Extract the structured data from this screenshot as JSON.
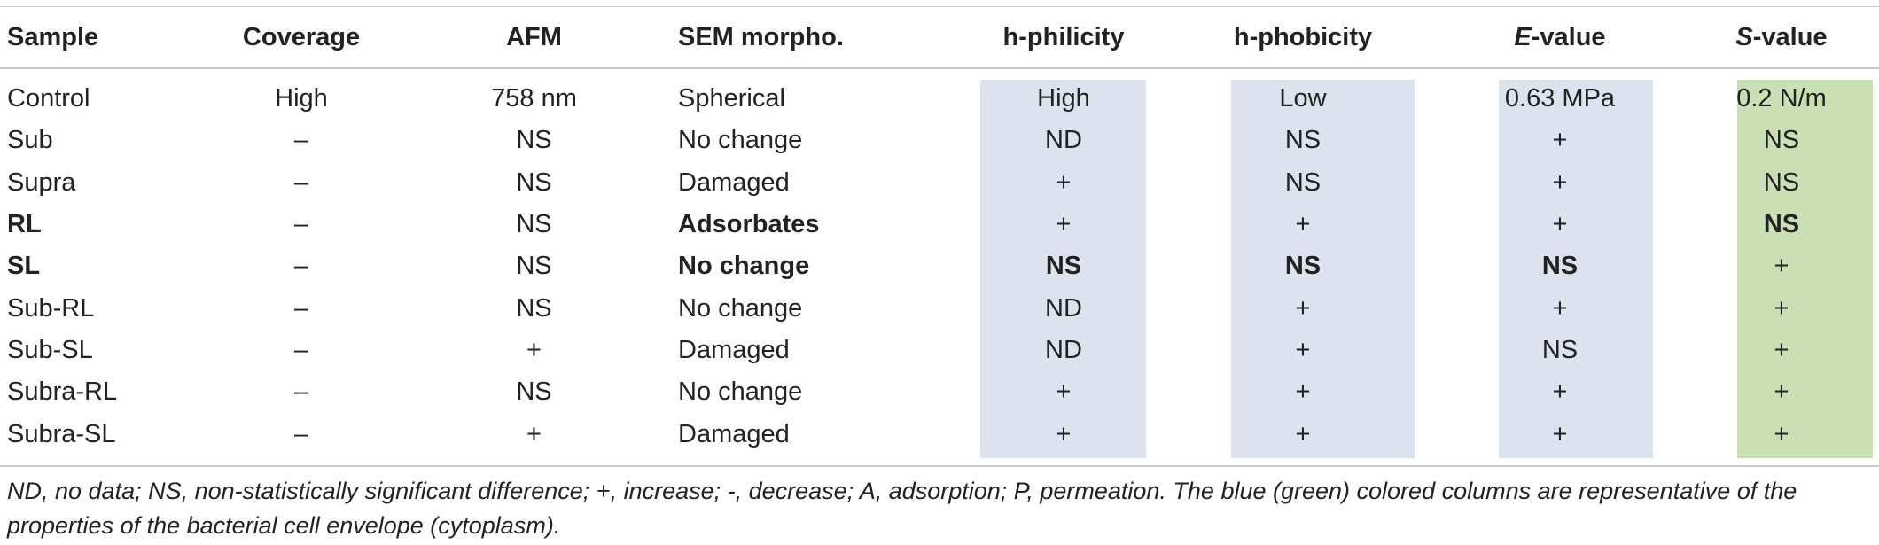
{
  "table": {
    "headers": {
      "sample": "Sample",
      "coverage": "Coverage",
      "afm": "AFM",
      "sem": "SEM morpho.",
      "hphilicity": "h-philicity",
      "hphobicity": "h-phobicity",
      "evalue_letter": "E",
      "evalue_rest": "-value",
      "svalue_letter": "S",
      "svalue_rest": "-value"
    },
    "rows": [
      {
        "sample": "Control",
        "coverage": "High",
        "afm": "758 nm",
        "sem": "Spherical",
        "hphilicity": "High",
        "hphobicity": "Low",
        "evalue": "0.63 MPa",
        "svalue": "0.2 N/m"
      },
      {
        "sample": "Sub",
        "coverage": "–",
        "afm": "NS",
        "sem": "No change",
        "hphilicity": "ND",
        "hphobicity": "NS",
        "evalue": "+",
        "svalue": "NS"
      },
      {
        "sample": "Supra",
        "coverage": "–",
        "afm": "NS",
        "sem": "Damaged",
        "hphilicity": "+",
        "hphobicity": "NS",
        "evalue": "+",
        "svalue": "NS"
      },
      {
        "sample": "RL",
        "coverage": "–",
        "afm": "NS",
        "sem": "Adsorbates",
        "hphilicity": "+",
        "hphobicity": "+",
        "evalue": "+",
        "svalue": "NS"
      },
      {
        "sample": "SL",
        "coverage": "–",
        "afm": "NS",
        "sem": "No change",
        "hphilicity": "NS",
        "hphobicity": "NS",
        "evalue": "NS",
        "svalue": "+"
      },
      {
        "sample": "Sub-RL",
        "coverage": "–",
        "afm": "NS",
        "sem": "No change",
        "hphilicity": "ND",
        "hphobicity": "+",
        "evalue": "+",
        "svalue": "+"
      },
      {
        "sample": "Sub-SL",
        "coverage": "–",
        "afm": "+",
        "sem": "Damaged",
        "hphilicity": "ND",
        "hphobicity": "+",
        "evalue": "NS",
        "svalue": "+"
      },
      {
        "sample": "Subra-RL",
        "coverage": "–",
        "afm": "NS",
        "sem": "No change",
        "hphilicity": "+",
        "hphobicity": "+",
        "evalue": "+",
        "svalue": "+"
      },
      {
        "sample": "Subra-SL",
        "coverage": "–",
        "afm": "+",
        "sem": "Damaged",
        "hphilicity": "+",
        "hphobicity": "+",
        "evalue": "+",
        "svalue": "+"
      }
    ]
  },
  "colors": {
    "envelope_blue": "#dce3ef",
    "cytoplasm_green": "#c8e0b4",
    "rule_gray": "#c9c9c9"
  },
  "footnote": "ND, no data; NS, non-statistically significant difference; +, increase; -, decrease; A, adsorption; P, permeation. The blue (green) colored columns are representative of the properties of the bacterial cell envelope (cytoplasm)."
}
